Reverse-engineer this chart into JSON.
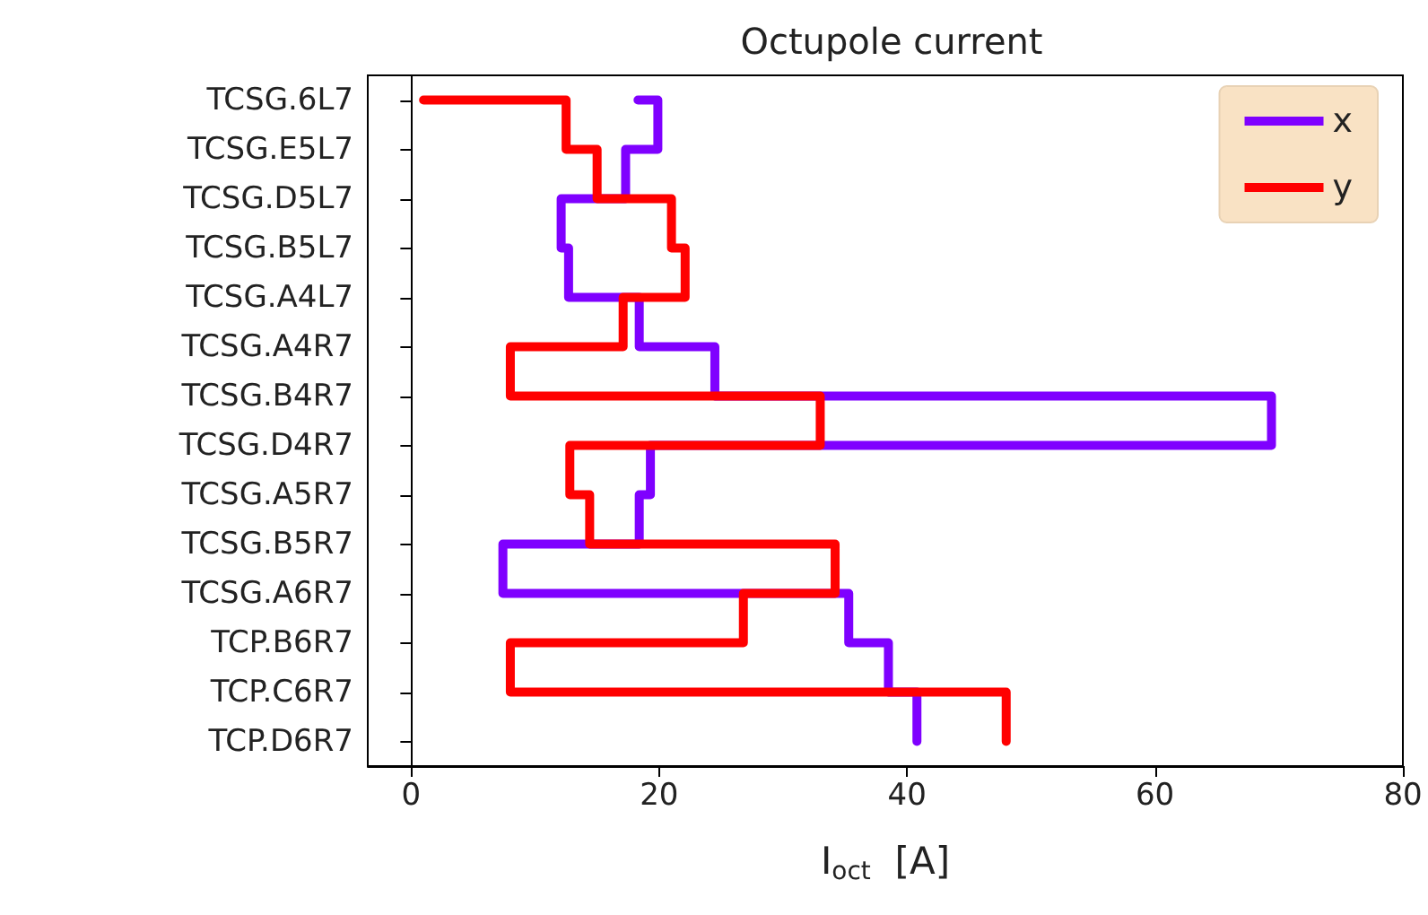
{
  "chart_data": {
    "type": "step",
    "orientation": "horizontal",
    "title": "Octupole current",
    "xlabel": "I$_{oct}$  [A]",
    "categories": [
      "TCSG.6L7",
      "TCSG.E5L7",
      "TCSG.D5L7",
      "TCSG.B5L7",
      "TCSG.A4L7",
      "TCSG.A4R7",
      "TCSG.B4R7",
      "TCSG.D4R7",
      "TCSG.A5R7",
      "TCSG.B5R7",
      "TCSG.A6R7",
      "TCP.B6R7",
      "TCP.C6R7",
      "TCP.D6R7"
    ],
    "series": [
      {
        "name": "x",
        "color": "#7f00ff",
        "values": [
          18.3,
          19.9,
          17.3,
          12.1,
          12.7,
          18.4,
          24.5,
          69.4,
          19.3,
          18.4,
          7.4,
          35.3,
          38.5,
          40.8
        ]
      },
      {
        "name": "y",
        "color": "#ff0000",
        "values": [
          1,
          12.5,
          15,
          21,
          22.1,
          17.1,
          8,
          33,
          12.8,
          14.4,
          34.2,
          26.8,
          8,
          48
        ]
      }
    ],
    "xlim": [
      -3.5,
      80
    ],
    "xticks": [
      0,
      20,
      40,
      60,
      80
    ],
    "legend": "top right",
    "marker": "none",
    "line_style": "solid"
  }
}
